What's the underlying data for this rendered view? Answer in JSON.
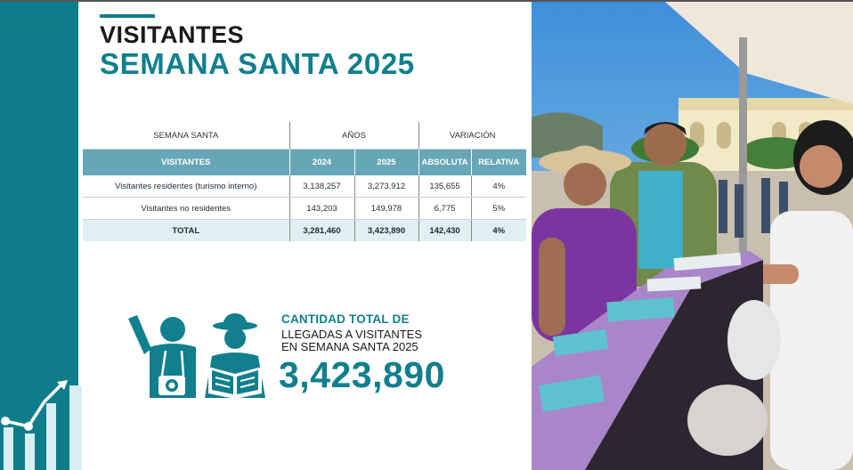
{
  "title_line1": "VISITANTES",
  "title_line2": "SEMANA SANTA 2025",
  "table": {
    "group_header": "SEMANA SANTA",
    "years_header": "AÑOS",
    "variation_header": "VARIACIÓN",
    "col_visitors": "VISITANTES",
    "col_2024": "2024",
    "col_2025": "2025",
    "col_absolute": "ABSOLUTA",
    "col_relative": "RELATIVA",
    "rows": [
      {
        "label": "Visitantes residentes (turismo interno)",
        "v2024": "3,138,257",
        "v2025": "3,273,912",
        "abs": "135,655",
        "rel": "4%"
      },
      {
        "label": "Visitantes no residentes",
        "v2024": "143,203",
        "v2025": "149,978",
        "abs": "6,775",
        "rel": "5%"
      },
      {
        "label": "TOTAL",
        "v2024": "3,281,460",
        "v2025": "3,423,890",
        "abs": "142,430",
        "rel": "4%"
      }
    ]
  },
  "kpi": {
    "label1": "CANTIDAD TOTAL DE",
    "label2a": "LLEGADAS A VISITANTES",
    "label2b": "EN SEMANA SANTA 2025",
    "value": "3,423,890"
  },
  "colors": {
    "teal": "#117f8d",
    "sidebar": "#0f7c8c",
    "header_row": "#67a6b6",
    "total_row": "#dff0f3"
  },
  "icons": [
    "tourists-icon",
    "growth-chart-icon"
  ]
}
